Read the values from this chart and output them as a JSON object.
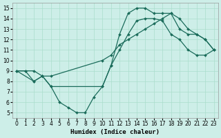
{
  "bg_color": "#cdeee8",
  "grid_color": "#aaddcc",
  "line_color": "#1a6b5a",
  "xlabel": "Humidex (Indice chaleur)",
  "xlim": [
    -0.5,
    23.5
  ],
  "ylim": [
    4.5,
    15.5
  ],
  "xticks": [
    0,
    1,
    2,
    3,
    4,
    5,
    6,
    7,
    8,
    9,
    10,
    11,
    12,
    13,
    14,
    15,
    16,
    17,
    18,
    19,
    20,
    21,
    22,
    23
  ],
  "yticks": [
    5,
    6,
    7,
    8,
    9,
    10,
    11,
    12,
    13,
    14,
    15
  ],
  "line1_x": [
    0,
    1,
    2,
    3,
    4,
    10,
    11,
    12,
    13,
    14,
    15,
    16,
    17,
    18,
    19,
    20,
    21,
    22,
    23
  ],
  "line1_y": [
    9.0,
    9.0,
    9.0,
    8.5,
    8.5,
    10.0,
    10.5,
    11.5,
    12.0,
    12.5,
    13.0,
    13.5,
    14.0,
    14.5,
    14.0,
    13.0,
    12.5,
    12.0,
    11.0
  ],
  "line2_x": [
    0,
    1,
    2,
    3,
    4,
    5,
    6,
    7,
    8,
    9,
    10,
    11,
    12,
    13,
    14,
    15,
    16,
    17,
    18,
    19,
    20,
    21,
    22,
    23
  ],
  "line2_y": [
    9.0,
    9.0,
    8.0,
    8.5,
    7.5,
    6.0,
    5.5,
    5.0,
    5.0,
    6.5,
    7.5,
    9.5,
    12.5,
    14.5,
    15.0,
    15.0,
    14.5,
    14.5,
    14.5,
    13.0,
    12.5,
    12.5,
    12.0,
    11.0
  ],
  "line3_x": [
    0,
    2,
    3,
    4,
    10,
    11,
    12,
    13,
    14,
    15,
    16,
    17,
    18,
    19,
    20,
    21,
    22,
    23
  ],
  "line3_y": [
    9.0,
    8.0,
    8.5,
    7.5,
    7.5,
    9.5,
    11.0,
    12.5,
    13.8,
    14.0,
    14.0,
    13.8,
    12.5,
    12.0,
    11.0,
    10.5,
    10.5,
    11.0
  ]
}
